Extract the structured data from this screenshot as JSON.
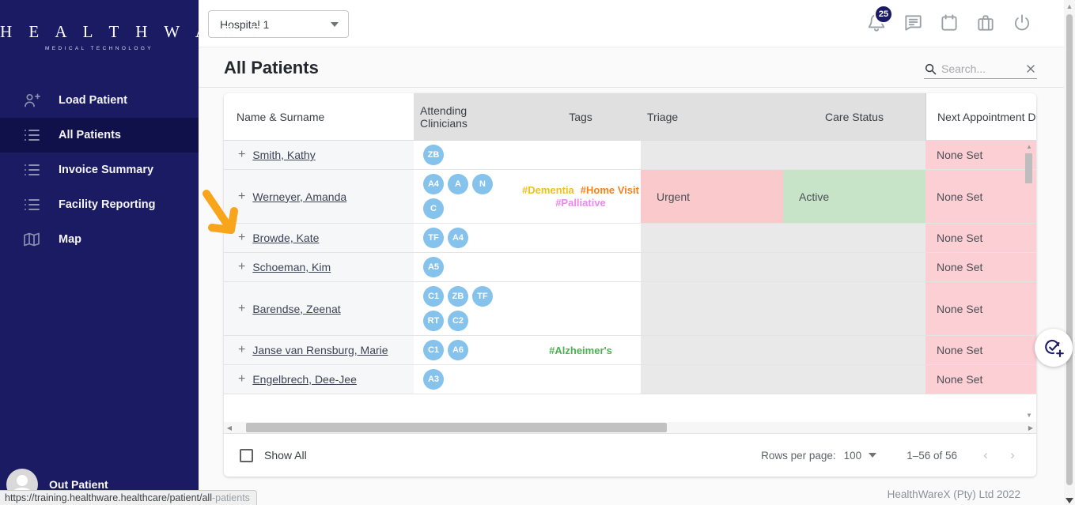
{
  "sidebar": {
    "logo_title": "H E A L T H W A R E",
    "logo_subtitle": "MEDICAL TECHNOLOGY",
    "items": [
      {
        "label": "Load Patient",
        "icon": "person-add-icon",
        "active": false
      },
      {
        "label": "All Patients",
        "icon": "list-icon",
        "active": true
      },
      {
        "label": "Invoice Summary",
        "icon": "list-icon",
        "active": false
      },
      {
        "label": "Facility Reporting",
        "icon": "list-icon",
        "active": false
      },
      {
        "label": "Map",
        "icon": "map-icon",
        "active": false
      }
    ],
    "footer_item": {
      "label": "Out Patient"
    }
  },
  "topbar": {
    "hospital_selector_value": "Hospital 1",
    "notification_count": "25",
    "icons": [
      "bell-icon",
      "chat-icon",
      "calendar-icon",
      "briefcase-icon",
      "power-icon"
    ]
  },
  "page": {
    "title": "All Patients",
    "search_placeholder": "Search..."
  },
  "table": {
    "columns": [
      "Name & Surname",
      "Attending Clinicians",
      "Tags",
      "Triage",
      "Care Status",
      "Next Appointment Da"
    ],
    "rows": [
      {
        "name": "Smith, Kathy",
        "clinicians": [
          "ZB"
        ],
        "tags": [],
        "triage": "",
        "care_status": "",
        "next_appointment": "None Set"
      },
      {
        "name": "Werneyer, Amanda",
        "clinicians": [
          "A4",
          "A",
          "N",
          "C"
        ],
        "tags": [
          {
            "label": "#Dementia",
            "color": "#f0c11d"
          },
          {
            "label": "#Home Visit",
            "color": "#f5821f"
          },
          {
            "label": "#Palliative",
            "color": "#ef86ee"
          }
        ],
        "triage": "Urgent",
        "care_status": "Active",
        "next_appointment": "None Set"
      },
      {
        "name": "Browde, Kate",
        "clinicians": [
          "TF",
          "A4"
        ],
        "tags": [],
        "triage": "",
        "care_status": "",
        "next_appointment": "None Set"
      },
      {
        "name": "Schoeman, Kim",
        "clinicians": [
          "A5"
        ],
        "tags": [],
        "triage": "",
        "care_status": "",
        "next_appointment": "None Set"
      },
      {
        "name": "Barendse, Zeenat",
        "clinicians": [
          "C1",
          "ZB",
          "TF",
          "RT",
          "C2"
        ],
        "tags": [],
        "triage": "",
        "care_status": "",
        "next_appointment": "None Set"
      },
      {
        "name": "Janse van Rensburg, Marie",
        "clinicians": [
          "C1",
          "A6"
        ],
        "tags": [
          {
            "label": "#Alzheimer's",
            "color": "#4caf50"
          }
        ],
        "triage": "",
        "care_status": "",
        "next_appointment": "None Set"
      },
      {
        "name": "Engelbrech, Dee-Jee",
        "clinicians": [
          "A3"
        ],
        "tags": [],
        "triage": "",
        "care_status": "",
        "next_appointment": "None Set"
      }
    ]
  },
  "footer": {
    "show_all_label": "Show All",
    "rows_per_page_label": "Rows per page:",
    "rows_per_page_value": "100",
    "range_label": "1–56 of 56"
  },
  "statusbar": {
    "url_primary": "https://training.healthware.healthcare/patient/all",
    "url_secondary": "-patients"
  },
  "copyright": "HealthWareX (Pty) Ltd 2022",
  "colors": {
    "sidebar_bg": "#1b1b64",
    "sidebar_active_bg": "#10104a",
    "avatar_blue": "#85c2ec",
    "badge_navy": "#1a1a66",
    "cell_gray": "#e9e9e9",
    "next_appt_pink": "#fccfd4",
    "annotation_arrow_orange": "#f9a51b",
    "status_bg": {
      "Urgent": "#f9c9cc",
      "Active": "#c7e3c8"
    }
  }
}
